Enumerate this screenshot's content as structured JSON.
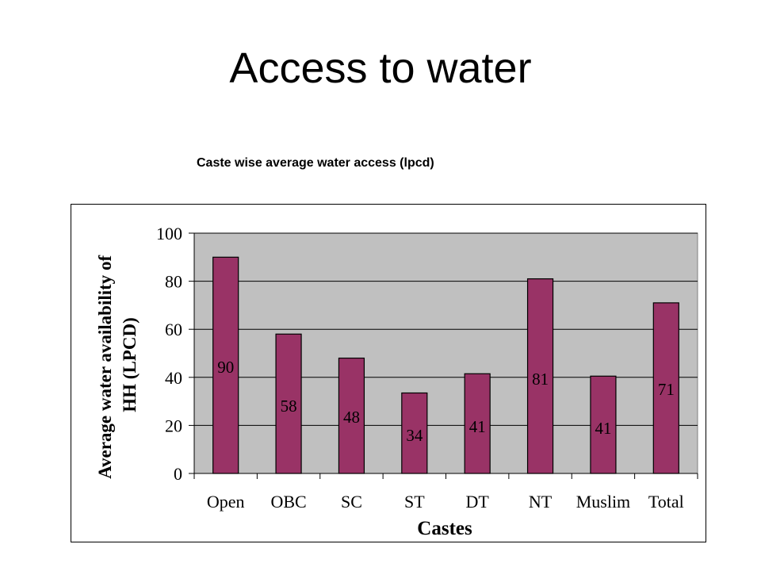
{
  "slide": {
    "title": "Access to water",
    "caption": "Caste wise average water access (lpcd)"
  },
  "colors": {
    "bar": "#993366",
    "plot_background": "#c0c0c0",
    "gridline": "#000000"
  },
  "chart_data": {
    "type": "bar",
    "title": "",
    "xlabel": "Castes",
    "ylabel": "Average water availability of HH (LPCD)",
    "categories": [
      "Open",
      "OBC",
      "SC",
      "ST",
      "DT",
      "NT",
      "Muslim",
      "Total"
    ],
    "values": [
      90,
      58,
      48,
      34,
      41,
      81,
      41,
      71
    ],
    "bar_heights": [
      90,
      58,
      48,
      33.5,
      41.5,
      81,
      40.5,
      71
    ],
    "data_labels": [
      "90",
      "58",
      "48",
      "34",
      "41",
      "81",
      "41",
      "71"
    ],
    "ylim": [
      0,
      100
    ],
    "yticks": [
      "0",
      "20",
      "40",
      "60",
      "80",
      "100"
    ],
    "grid": true,
    "legend": "none"
  }
}
